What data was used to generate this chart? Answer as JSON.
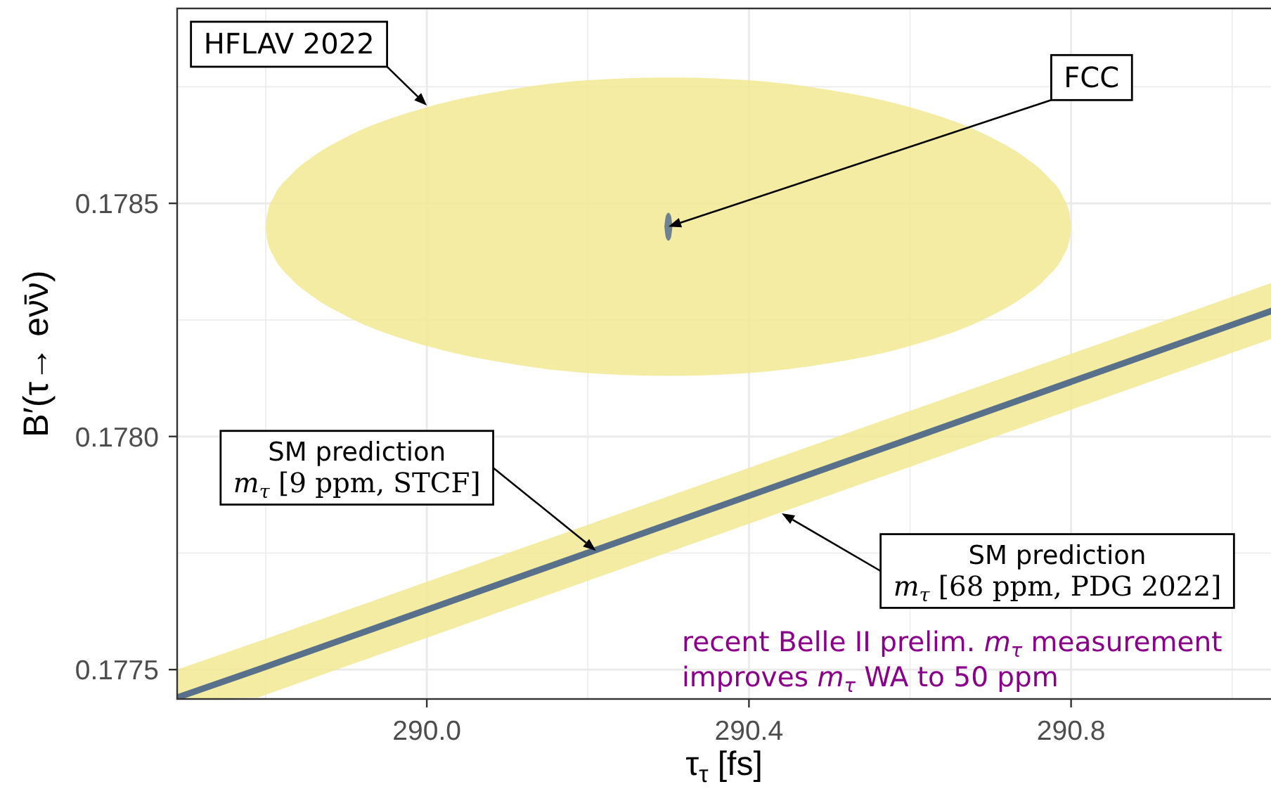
{
  "chart_data": {
    "type": "area",
    "xlabel": "τ$_{τ}$ [fs]",
    "ylabel": "B′(τ→ eν̄ν)",
    "xlim": [
      289.69,
      291.05
    ],
    "ylim": [
      0.177437,
      0.178918
    ],
    "xticks": [
      {
        "value": 289.8,
        "label": null
      },
      {
        "value": 290,
        "label": "290.0"
      },
      {
        "value": 290.2,
        "label": null
      },
      290.4,
      {
        "value": 290.6,
        "label": null
      },
      290.8,
      {
        "value": 291,
        "label": null
      }
    ],
    "yticks": [
      0.1775,
      {
        "value": 0.17775,
        "label": null
      },
      {
        "value": 0.178,
        "label": "0.1780"
      },
      {
        "value": 0.17825,
        "label": null
      },
      0.1785,
      {
        "value": 0.17875,
        "label": null
      }
    ],
    "grid": true,
    "series": [
      {
        "color": "#f3e993",
        "x": [
          289.8,
          289.802,
          289.81,
          289.83,
          289.86,
          289.9,
          290.0,
          290.1,
          290.2,
          290.3,
          290.4,
          290.5,
          290.6,
          290.7,
          290.74,
          290.77,
          290.79,
          290.798,
          290.8
        ],
        "values": [
          null,
          null,
          null,
          null,
          null,
          null,
          null,
          null,
          null,
          null,
          null,
          null,
          null,
          null,
          null,
          null,
          null,
          null,
          null
        ],
        "lower": [
          0.17845,
          0.178421,
          0.178386,
          0.178341,
          0.178298,
          0.178258,
          0.178194,
          0.178157,
          0.178136,
          0.17813,
          0.178136,
          0.178157,
          0.178194,
          0.178258,
          0.178298,
          0.178341,
          0.178386,
          0.178421,
          0.17845
        ],
        "upper": [
          0.17845,
          0.178479,
          0.178514,
          0.178559,
          0.178602,
          0.178642,
          0.178706,
          0.178743,
          0.178764,
          0.17877,
          0.178764,
          0.178743,
          0.178706,
          0.178642,
          0.178602,
          0.178559,
          0.178514,
          0.178479,
          0.17845
        ]
      },
      {
        "type": "line",
        "color": "#587089",
        "x": [
          289.69,
          289.79,
          291.05
        ],
        "values": [
          0.17744,
          0.1775,
          0.17827
        ],
        "lower": [
          0.177437,
          0.17744,
          0.17821
        ],
        "upper": [
          0.1775,
          0.17756,
          0.17833
        ]
      },
      {
        "color": "#587089",
        "x": [
          290.295,
          290.297,
          290.3,
          290.303,
          290.305
        ],
        "values": [
          null,
          null,
          null,
          null,
          null
        ],
        "lower": [
          0.17845,
          0.178426,
          0.17842,
          0.178426,
          0.17845
        ],
        "upper": [
          0.17845,
          0.178474,
          0.17848,
          0.178474,
          0.17845
        ]
      }
    ],
    "annotations": [
      {
        "text": "HFLAV 2022",
        "x": 290.0,
        "y": 0.17871
      },
      {
        "text": "FCC",
        "x": 290.3,
        "y": 0.17845
      },
      {
        "text": "SM prediction m$_{τ}$ [9 ppm, STCF]",
        "x": 290.21,
        "y": 0.177755
      },
      "SM prediction m$_{τ}$ [68 ppm, PDG 2022]",
      "recent Belle II prelim. m$_{τ}$ measurement\nimproves m$_{τ}$ WA to 50 ppm"
    ]
  }
}
